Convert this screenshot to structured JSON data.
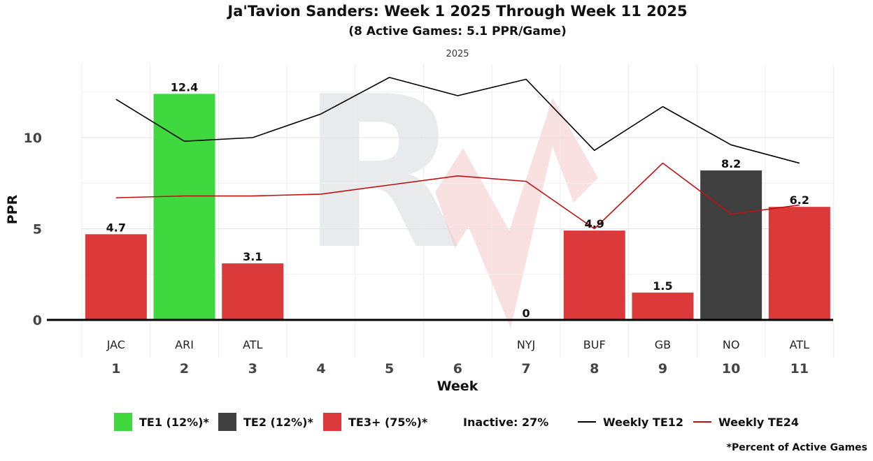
{
  "chart_data": {
    "type": "bar",
    "title": "Ja'Tavion Sanders: Week 1 2025 Through Week 11 2025",
    "subtitle": "(8 Active Games: 5.1 PPR/Game)",
    "facet_label": "2025",
    "xlabel": "Week",
    "ylabel": "PPR",
    "ylim": [
      0,
      13.5
    ],
    "yticks": [
      0,
      5,
      10
    ],
    "weeks": [
      "1",
      "2",
      "3",
      "4",
      "5",
      "6",
      "7",
      "8",
      "9",
      "10",
      "11"
    ],
    "opponents": [
      "JAC",
      "ARI",
      "ATL",
      "",
      "",
      "",
      "NYJ",
      "BUF",
      "GB",
      "NO",
      "ATL"
    ],
    "values": [
      4.7,
      12.4,
      3.1,
      null,
      null,
      null,
      0,
      4.9,
      1.5,
      8.2,
      6.2
    ],
    "value_labels": [
      "4.7",
      "12.4",
      "3.1",
      "",
      "",
      "",
      "0",
      "4.9",
      "1.5",
      "8.2",
      "6.2"
    ],
    "tiers": [
      "TE3+",
      "TE1",
      "TE3+",
      null,
      null,
      null,
      "TE3+",
      "TE3+",
      "TE3+",
      "TE2",
      "TE3+"
    ],
    "tier_colors": {
      "TE1": "#3fd93f",
      "TE2": "#404040",
      "TE3+": "#dc3a3a"
    },
    "series": [
      {
        "name": "Weekly TE12",
        "color": "#000000",
        "values": [
          12.1,
          9.8,
          10.0,
          11.3,
          13.3,
          12.3,
          13.2,
          9.3,
          11.7,
          9.6,
          8.6
        ]
      },
      {
        "name": "Weekly TE24",
        "color": "#c01010",
        "values": [
          6.7,
          6.8,
          6.8,
          6.9,
          7.4,
          7.9,
          7.6,
          5.0,
          8.6,
          5.8,
          6.3
        ]
      }
    ]
  },
  "legend": {
    "te1": "TE1 (12%)*",
    "te2": "TE2 (12%)*",
    "te3": "TE3+ (75%)*",
    "inactive": "Inactive: 27%",
    "te12": "Weekly TE12",
    "te24": "Weekly TE24"
  },
  "footnote": "*Percent of Active Games"
}
